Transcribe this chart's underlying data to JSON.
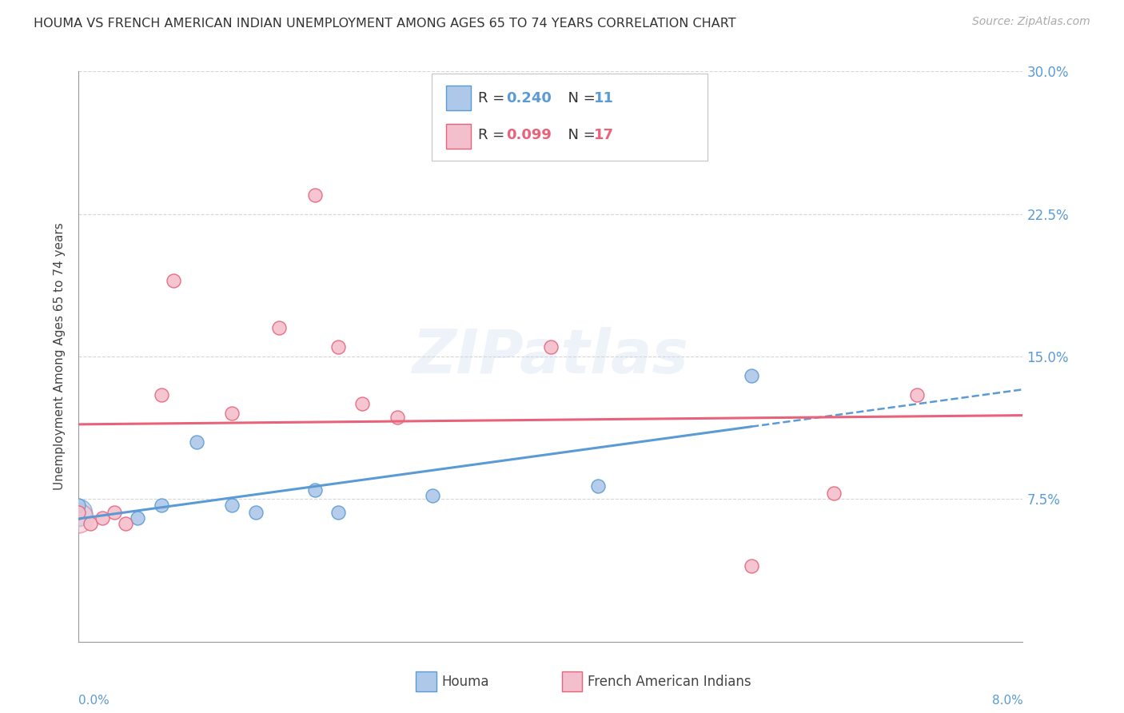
{
  "title": "HOUMA VS FRENCH AMERICAN INDIAN UNEMPLOYMENT AMONG AGES 65 TO 74 YEARS CORRELATION CHART",
  "source": "Source: ZipAtlas.com",
  "ylabel": "Unemployment Among Ages 65 to 74 years",
  "x_min": 0.0,
  "x_max": 0.08,
  "y_min": 0.0,
  "y_max": 0.3,
  "yticks": [
    0.0,
    0.075,
    0.15,
    0.225,
    0.3
  ],
  "ytick_labels": [
    "",
    "7.5%",
    "15.0%",
    "22.5%",
    "30.0%"
  ],
  "houma_color": "#adc8e8",
  "houma_edge_color": "#5b9bd5",
  "french_color": "#f4bfcc",
  "french_edge_color": "#e8627a",
  "houma_R": 0.24,
  "houma_N": 11,
  "french_R": 0.099,
  "french_N": 17,
  "houma_x": [
    0.0,
    0.005,
    0.007,
    0.01,
    0.013,
    0.015,
    0.02,
    0.022,
    0.03,
    0.044,
    0.057
  ],
  "houma_y": [
    0.072,
    0.065,
    0.072,
    0.105,
    0.072,
    0.068,
    0.08,
    0.068,
    0.077,
    0.082,
    0.14
  ],
  "french_x": [
    0.0,
    0.001,
    0.002,
    0.003,
    0.004,
    0.007,
    0.008,
    0.013,
    0.017,
    0.02,
    0.022,
    0.024,
    0.027,
    0.04,
    0.057,
    0.064,
    0.071
  ],
  "french_y": [
    0.068,
    0.062,
    0.065,
    0.068,
    0.062,
    0.13,
    0.19,
    0.12,
    0.165,
    0.235,
    0.155,
    0.125,
    0.118,
    0.155,
    0.04,
    0.078,
    0.13
  ],
  "marker_size": 150,
  "background_color": "#ffffff",
  "grid_color": "#cccccc",
  "watermark": "ZIPatlas",
  "legend_label_houma": "Houma",
  "legend_label_french": "French American Indians"
}
